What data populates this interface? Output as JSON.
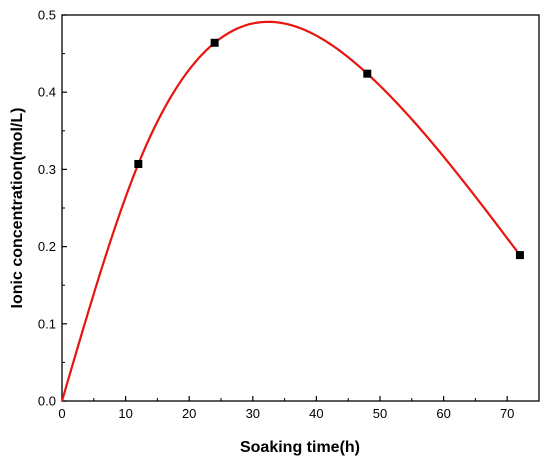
{
  "chart_data": {
    "type": "line",
    "title": "",
    "xlabel": "Soaking time(h)",
    "ylabel": "Ionic concentration(mol/L)",
    "xlim": [
      0,
      75
    ],
    "ylim": [
      0,
      0.5
    ],
    "xticks": [
      "0",
      "10",
      "20",
      "30",
      "40",
      "50",
      "60",
      "70"
    ],
    "yticks": [
      "0.0",
      "0.1",
      "0.2",
      "0.3",
      "0.4",
      "0.5"
    ],
    "grid": false,
    "legend": "none",
    "series": [
      {
        "color": "#e8140e",
        "marker": "square",
        "marker_color": "#000000",
        "smooth_fit": true,
        "x": [
          0,
          12,
          24,
          48,
          72
        ],
        "y": [
          0.0,
          0.307,
          0.464,
          0.424,
          0.189
        ]
      }
    ]
  }
}
